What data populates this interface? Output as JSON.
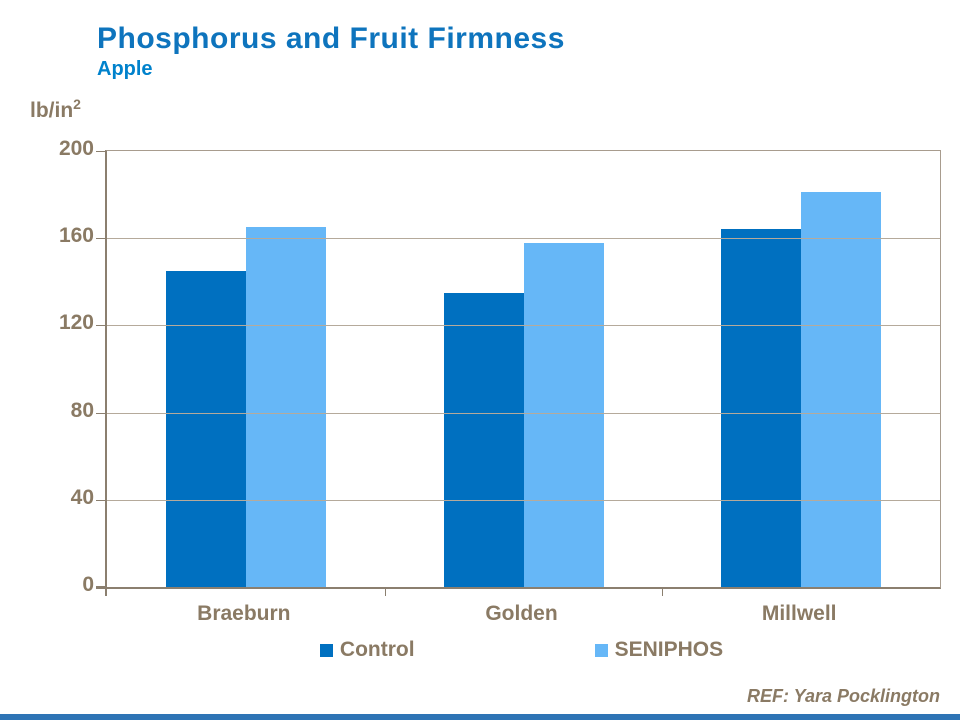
{
  "slide": {
    "ref": "REF: Yara Pocklington",
    "accent_bar_color": "#2E74B5"
  },
  "chart_data": {
    "type": "bar",
    "title": "Phosphorus and Fruit Firmness",
    "subtitle": "Apple",
    "ylabel": "lb/in",
    "ylabel_superscript": "2",
    "ylim": [
      0,
      200
    ],
    "yticks": [
      0,
      40,
      80,
      120,
      160,
      200
    ],
    "grid": true,
    "legend_position": "bottom",
    "categories": [
      "Braeburn",
      "Golden",
      "Millwell"
    ],
    "series": [
      {
        "name": "Control",
        "color": "#0070C0",
        "values": [
          145,
          135,
          164
        ]
      },
      {
        "name": "SENIPHOS",
        "color": "#66B7F7",
        "values": [
          165,
          158,
          181
        ]
      }
    ],
    "colors": {
      "title": "#0E74BD",
      "subtitle": "#0082CC",
      "text": "#8A7A64",
      "axis": "#8B7F6F",
      "plot_frame": "#A89C8E",
      "gridline": "#B5AA9B"
    }
  }
}
